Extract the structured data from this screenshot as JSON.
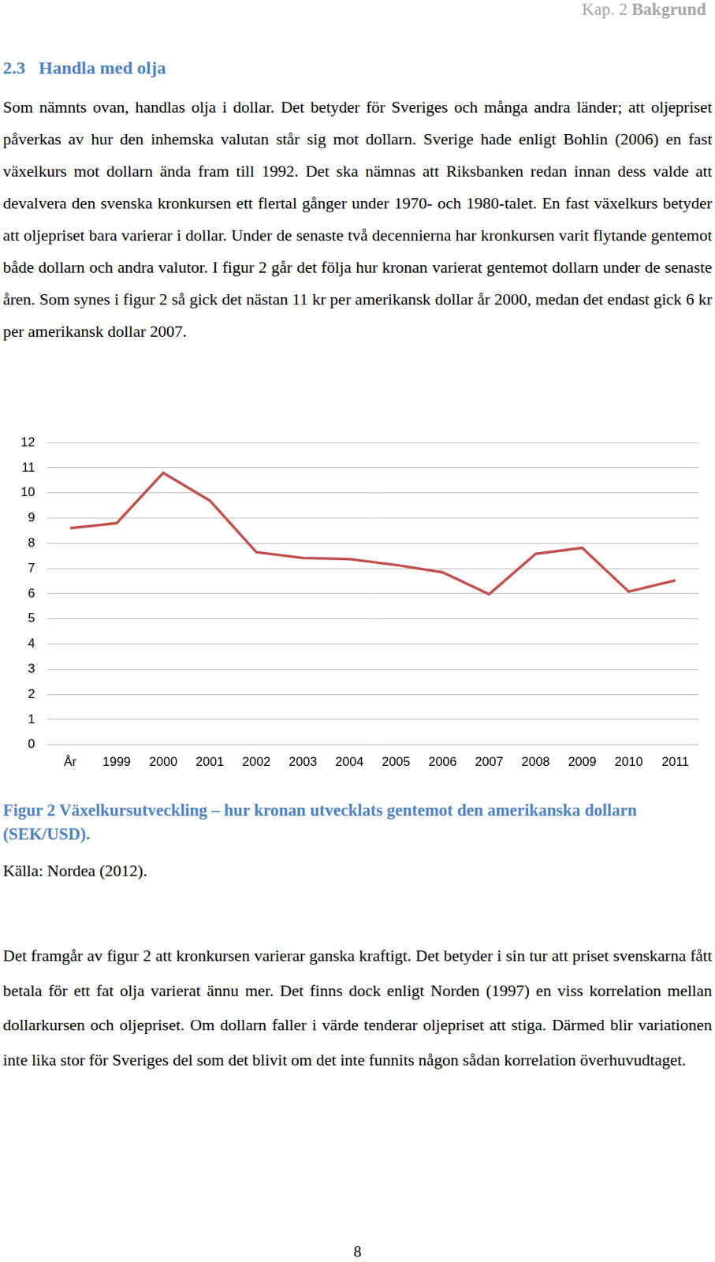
{
  "header": {
    "chapter": "Kap. 2",
    "title": "Bakgrund"
  },
  "section": {
    "number": "2.3",
    "title": "Handla med olja"
  },
  "paragraphs": [
    "Som nämnts ovan, handlas olja i dollar. Det betyder för Sveriges och många andra länder; att oljepriset påverkas av hur den inhemska valutan står sig mot dollarn. Sverige hade enligt Bohlin (2006) en fast växelkurs mot dollarn ända fram till 1992. Det ska nämnas att Riksbanken redan innan dess valde att devalvera den svenska kronkursen ett flertal gånger under 1970- och 1980-talet. En fast växelkurs betyder att oljepriset bara varierar i dollar. Under de senaste två decennierna har kronkursen varit flytande gentemot både dollarn och andra valutor. I figur 2 går det följa hur kronan varierat gentemot dollarn under de senaste åren. Som synes i figur 2 så gick det nästan 11 kr per amerikansk dollar år 2000, medan det endast gick 6 kr per amerikansk dollar 2007.",
    "Det framgår av figur 2 att kronkursen varierar ganska kraftigt. Det betyder i sin tur att priset svenskarna fått betala för ett fat olja varierat ännu mer. Det finns dock enligt Norden (1997) en viss korrelation mellan dollarkursen och oljepriset. Om dollarn faller i värde tenderar oljepriset att stiga. Därmed blir variationen inte lika stor för Sveriges del som det blivit om det inte funnits någon sådan korrelation överhuvudtaget."
  ],
  "chart_data": {
    "type": "line",
    "categories": [
      "År",
      "1999",
      "2000",
      "2001",
      "2002",
      "2003",
      "2004",
      "2005",
      "2006",
      "2007",
      "2008",
      "2009",
      "2010",
      "2011"
    ],
    "values": [
      8.6,
      8.8,
      10.8,
      9.7,
      7.65,
      7.42,
      7.37,
      7.14,
      6.85,
      5.98,
      7.58,
      7.82,
      6.08,
      6.53
    ],
    "color": "#c0504d",
    "ylim": [
      0,
      12
    ],
    "yticks": [
      0,
      1,
      2,
      3,
      4,
      5,
      6,
      7,
      8,
      9,
      10,
      11,
      12
    ],
    "grid": true
  },
  "caption": {
    "label": "Figur 2",
    "text": "Växelkursutveckling – hur kronan utvecklats gentemot den amerikanska dollarn (SEK/USD)."
  },
  "source": "Källa: Nordea (2012).",
  "page_number": 8
}
